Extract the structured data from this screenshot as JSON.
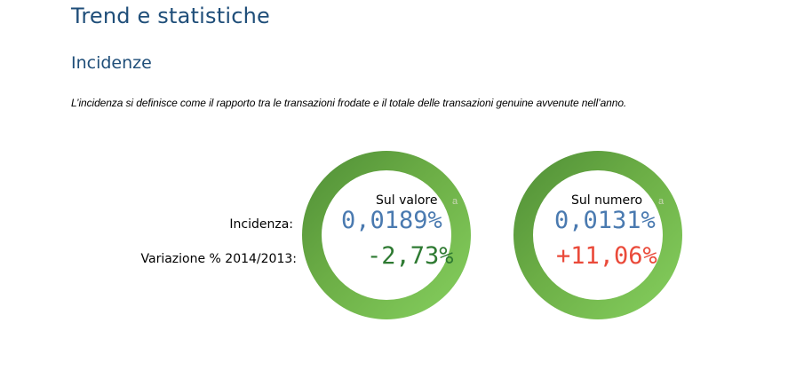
{
  "header": {
    "title": "Trend e statistiche",
    "subtitle": "Incidenze"
  },
  "definition": "L’incidenza si definisce come il rapporto tra le transazioni frodate e il totale delle transazioni genuine avvenute nell’anno.",
  "row_labels": {
    "incidenza": "Incidenza:",
    "variazione": "Variazione % 2014/2013:"
  },
  "cards": {
    "valore": {
      "caption": "Sul valore",
      "ghost": "a",
      "incidenza": "0,0189%",
      "variazione": "-2,73%"
    },
    "numero": {
      "caption": "Sul numero",
      "ghost": "a",
      "incidenza": "0,0131%",
      "variazione": "+11,06%"
    }
  },
  "colors": {
    "heading": "#1f4e79",
    "value_blue": "#4a7ab0",
    "change_negative": "#2e7a32",
    "change_positive": "#ea4a3a",
    "ring_dark": "#4f8e36",
    "ring_light": "#86d05f"
  }
}
